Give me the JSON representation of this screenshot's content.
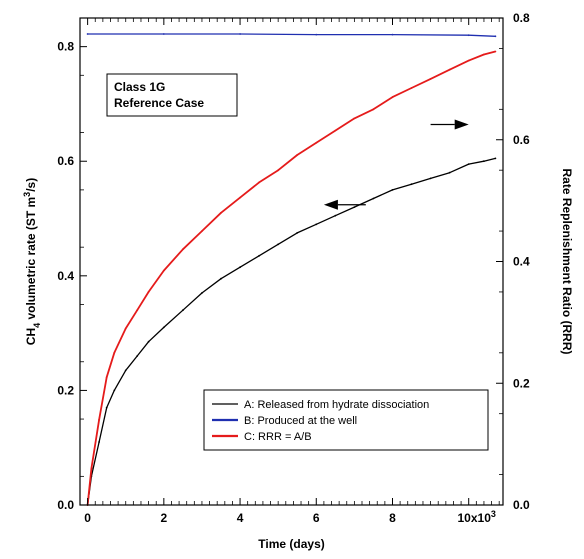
{
  "chart_data": {
    "type": "line",
    "xlabel": "Time (days)",
    "ylabel_left_pre": "CH",
    "ylabel_left_sub": "4",
    "ylabel_left_post": " volumetric rate (ST m",
    "ylabel_left_sup": "3",
    "ylabel_left_end": "/s)",
    "ylabel_right": "Rate Replenishment Ratio (RRR)",
    "xlim": [
      -200,
      10900
    ],
    "ylim_left": [
      0,
      0.85
    ],
    "ylim_right": [
      0,
      0.8
    ],
    "x_ticks": [
      "0",
      "2",
      "4",
      "6",
      "8"
    ],
    "x_tick_values": [
      0,
      2000,
      4000,
      6000,
      8000
    ],
    "x_tick_last": "10x10",
    "x_tick_last_sup": "3",
    "x_tick_last_value": 10000,
    "y_left_ticks": [
      "0.0",
      "0.2",
      "0.4",
      "0.6",
      "0.8"
    ],
    "y_left_tick_values": [
      0,
      0.2,
      0.4,
      0.6,
      0.8
    ],
    "y_right_ticks": [
      "0.0",
      "0.2",
      "0.4",
      "0.6",
      "0.8"
    ],
    "y_right_tick_values": [
      0,
      0.2,
      0.4,
      0.6,
      0.8
    ],
    "annotation_lines": [
      "Class 1G",
      "Reference Case"
    ],
    "series": [
      {
        "name": "A: Released from hydrate dissociation",
        "color": "#000000",
        "axis": "left",
        "x": [
          0,
          100,
          300,
          500,
          700,
          1000,
          1300,
          1600,
          2000,
          2500,
          3000,
          3500,
          4000,
          4500,
          5000,
          5500,
          6000,
          6500,
          7000,
          7500,
          8000,
          8500,
          9000,
          9500,
          10000,
          10400,
          10700
        ],
        "y": [
          0.0,
          0.05,
          0.11,
          0.17,
          0.2,
          0.235,
          0.26,
          0.285,
          0.31,
          0.34,
          0.37,
          0.395,
          0.415,
          0.435,
          0.455,
          0.475,
          0.49,
          0.505,
          0.52,
          0.535,
          0.55,
          0.56,
          0.57,
          0.58,
          0.595,
          0.6,
          0.605
        ]
      },
      {
        "name": "B: Produced at the well",
        "color": "#1f2fb0",
        "axis": "left",
        "x": [
          0,
          2000,
          4000,
          6000,
          8000,
          10000,
          10700
        ],
        "y": [
          0.822,
          0.822,
          0.822,
          0.821,
          0.821,
          0.82,
          0.818
        ]
      },
      {
        "name": "C: RRR = A/B",
        "color": "#e51b1b",
        "axis": "right",
        "x": [
          0,
          100,
          300,
          500,
          700,
          1000,
          1300,
          1600,
          2000,
          2500,
          3000,
          3500,
          4000,
          4500,
          5000,
          5500,
          6000,
          6500,
          7000,
          7500,
          8000,
          8500,
          9000,
          9500,
          10000,
          10400,
          10700
        ],
        "y": [
          0.0,
          0.06,
          0.14,
          0.21,
          0.25,
          0.29,
          0.32,
          0.35,
          0.385,
          0.42,
          0.45,
          0.48,
          0.505,
          0.53,
          0.55,
          0.575,
          0.595,
          0.615,
          0.635,
          0.65,
          0.67,
          0.685,
          0.7,
          0.715,
          0.73,
          0.74,
          0.745
        ]
      }
    ],
    "arrows": [
      {
        "dir": "right",
        "axis": "right",
        "x_from": 9000,
        "x_to": 10000,
        "y": 0.625
      },
      {
        "dir": "left",
        "axis": "left",
        "x_from": 7300,
        "x_to": 6200,
        "y": 0.524
      }
    ],
    "legend_position": "bottom-right"
  }
}
